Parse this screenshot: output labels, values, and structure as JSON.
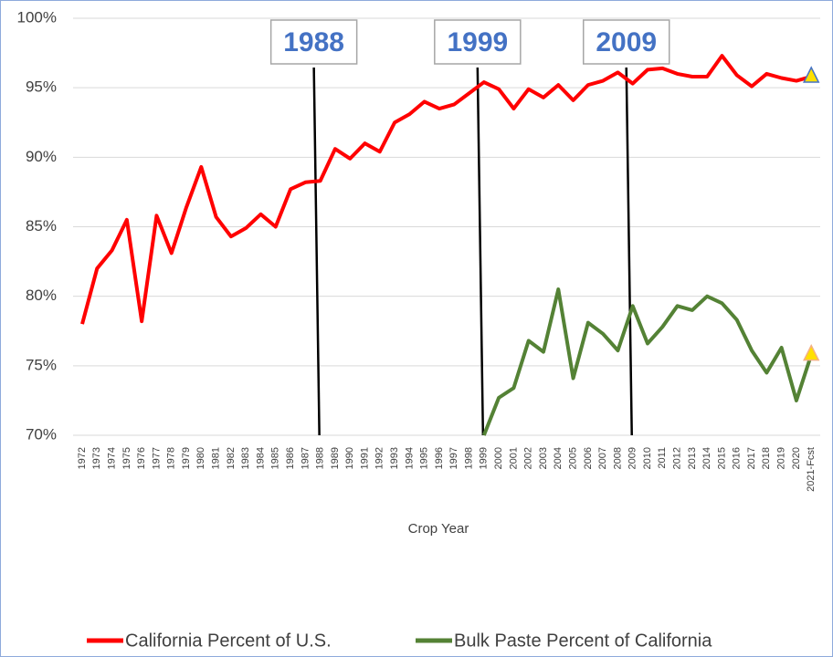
{
  "chart_data": {
    "type": "line",
    "x_label": "Crop Year",
    "categories": [
      "1972",
      "1973",
      "1974",
      "1975",
      "1976",
      "1977",
      "1978",
      "1979",
      "1980",
      "1981",
      "1982",
      "1983",
      "1984",
      "1985",
      "1986",
      "1987",
      "1988",
      "1989",
      "1990",
      "1991",
      "1992",
      "1993",
      "1994",
      "1995",
      "1996",
      "1997",
      "1998",
      "1999",
      "2000",
      "2001",
      "2002",
      "2003",
      "2004",
      "2005",
      "2006",
      "2007",
      "2008",
      "2009",
      "2010",
      "2011",
      "2012",
      "2013",
      "2014",
      "2015",
      "2016",
      "2017",
      "2018",
      "2019",
      "2020",
      "2021-Fcst"
    ],
    "series": [
      {
        "name": "California Percent of U.S.",
        "color": "#ff0000",
        "values": [
          78.0,
          82.0,
          83.3,
          85.5,
          78.2,
          85.8,
          83.1,
          86.4,
          89.3,
          85.7,
          84.3,
          84.9,
          85.9,
          85.0,
          87.7,
          88.2,
          88.3,
          90.6,
          89.9,
          91.0,
          90.4,
          92.5,
          93.1,
          94.0,
          93.5,
          93.8,
          94.6,
          95.4,
          94.9,
          93.5,
          94.9,
          94.3,
          95.2,
          94.1,
          95.2,
          95.5,
          96.1,
          95.3,
          96.3,
          96.4,
          96.0,
          95.8,
          95.8,
          97.3,
          95.9,
          95.1,
          96.0,
          95.7,
          95.5,
          95.8
        ]
      },
      {
        "name": "Bulk Paste Percent of California",
        "color": "#548235",
        "values": [
          null,
          null,
          null,
          null,
          null,
          null,
          null,
          null,
          null,
          null,
          null,
          null,
          null,
          null,
          null,
          null,
          null,
          null,
          null,
          null,
          null,
          null,
          null,
          null,
          null,
          null,
          null,
          70.0,
          72.7,
          73.4,
          76.8,
          76.0,
          80.5,
          74.1,
          78.1,
          77.3,
          76.1,
          79.3,
          76.6,
          77.8,
          79.3,
          79.0,
          80.0,
          79.5,
          78.3,
          76.1,
          74.5,
          76.3,
          72.5,
          75.8
        ]
      }
    ],
    "ylim": [
      70,
      100
    ],
    "yticks": [
      {
        "value": 70,
        "label": "70%"
      },
      {
        "value": 75,
        "label": "75%"
      },
      {
        "value": 80,
        "label": "80%"
      },
      {
        "value": 85,
        "label": "85%"
      },
      {
        "value": 90,
        "label": "90%"
      },
      {
        "value": 95,
        "label": "95%"
      },
      {
        "value": 100,
        "label": "100%"
      }
    ],
    "grid": true,
    "annotations": [
      "1988",
      "1999",
      "2009"
    ],
    "legend": "bottom"
  }
}
